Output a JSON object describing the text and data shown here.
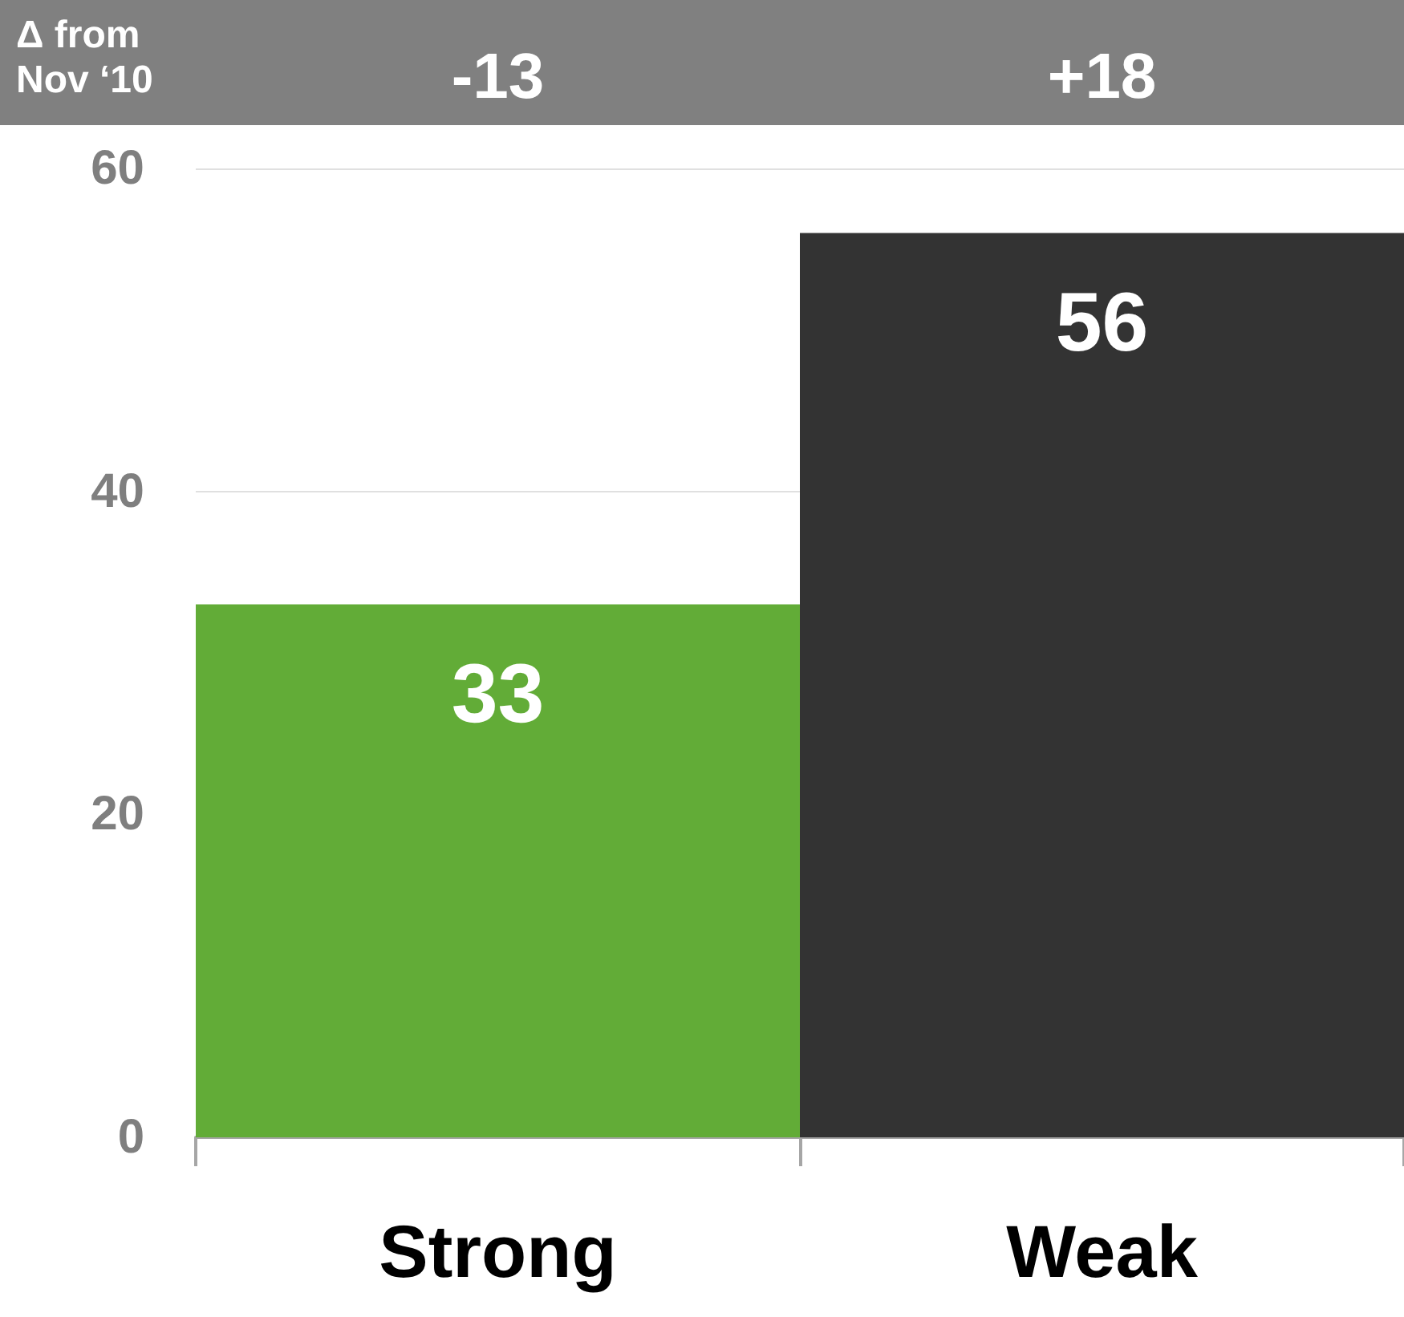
{
  "chart_data": {
    "type": "bar",
    "categories": [
      "Strong",
      "Weak"
    ],
    "values": [
      33,
      56
    ],
    "colors": [
      "#62ac37",
      "#333333"
    ],
    "ylim": [
      0,
      60
    ],
    "yticks": [
      0,
      20,
      40,
      60
    ],
    "grid": "y",
    "data_labels": true,
    "annotations": [
      "Δ from Nov ‘10",
      "-13",
      "+18"
    ]
  }
}
